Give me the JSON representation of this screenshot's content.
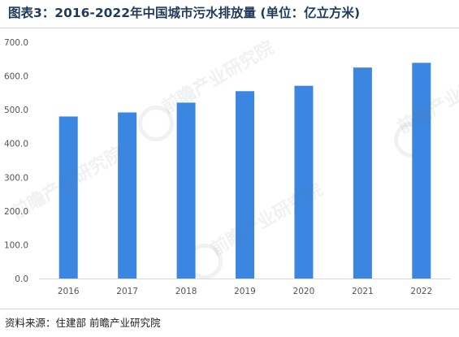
{
  "title": "图表3：2016-2022年中国城市污水排放量 (单位：亿立方米)",
  "source": "资料来源：住建部 前瞻产业研究院",
  "watermark": "前瞻产业研究院",
  "colors": {
    "bar": "#3a86e0",
    "title": "#1f3a5a",
    "axis_text": "#555555"
  },
  "chart_data": {
    "type": "bar",
    "title": "图表3：2016-2022年中国城市污水排放量 (单位：亿立方米)",
    "xlabel": "",
    "ylabel": "",
    "categories": [
      "2016",
      "2017",
      "2018",
      "2019",
      "2020",
      "2021",
      "2022"
    ],
    "values": [
      480,
      492,
      521,
      555,
      571,
      625,
      639
    ],
    "yticks": [
      "0.0",
      "100.0",
      "200.0",
      "300.0",
      "400.0",
      "500.0",
      "600.0",
      "700.0"
    ],
    "ylim": [
      0,
      700
    ],
    "grid": false,
    "legend": "none"
  }
}
